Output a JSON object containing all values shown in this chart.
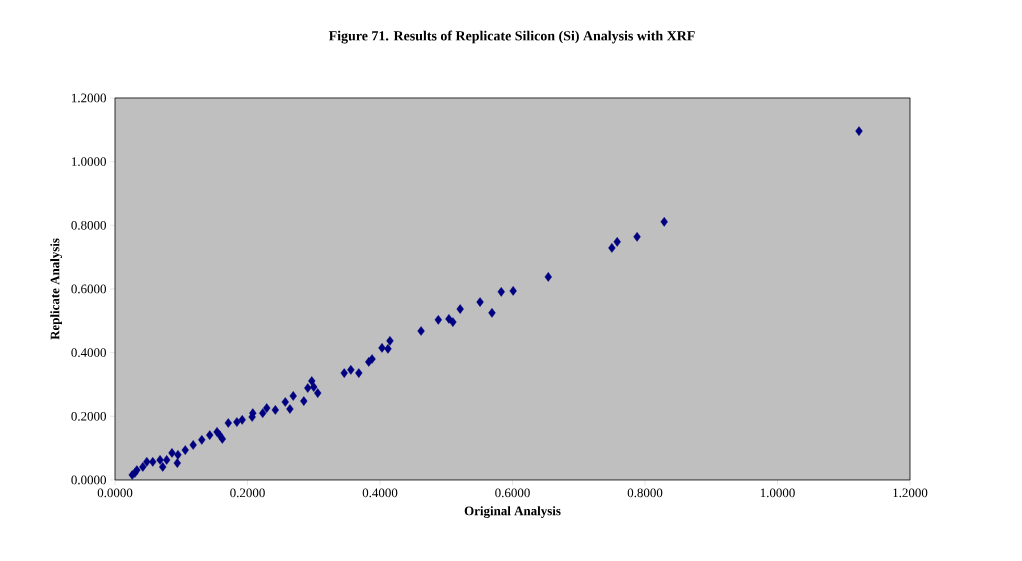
{
  "chart_data": {
    "type": "scatter",
    "title": "Figure 71.  Results of Replicate Silicon (Si) Analysis with XRF",
    "xlabel": "Original Analysis",
    "ylabel": "Replicate Analysis",
    "xlim": [
      0,
      1.2
    ],
    "ylim": [
      0,
      1.2
    ],
    "xticks": [
      {
        "value": 0,
        "label": "0.0000"
      },
      {
        "value": 0.2,
        "label": "0.2000"
      },
      {
        "value": 0.4,
        "label": "0.4000"
      },
      {
        "value": 0.6,
        "label": "0.6000"
      },
      {
        "value": 0.8,
        "label": "0.8000"
      },
      {
        "value": 1.0,
        "label": "1.0000"
      },
      {
        "value": 1.2,
        "label": "1.2000"
      }
    ],
    "yticks": [
      {
        "value": 0,
        "label": "0.0000"
      },
      {
        "value": 0.2,
        "label": "0.2000"
      },
      {
        "value": 0.4,
        "label": "0.4000"
      },
      {
        "value": 0.6,
        "label": "0.6000"
      },
      {
        "value": 0.8,
        "label": "0.8000"
      },
      {
        "value": 1.0,
        "label": "1.0000"
      },
      {
        "value": 1.2,
        "label": "1.2000"
      }
    ],
    "marker": "diamond",
    "grid": false,
    "series": [
      {
        "color": "#000080",
        "x": [
          1.123,
          0.829,
          0.788,
          0.758,
          0.75,
          0.654,
          0.601,
          0.583,
          0.569,
          0.551,
          0.521,
          0.51,
          0.504,
          0.488,
          0.462,
          0.415,
          0.412,
          0.403,
          0.388,
          0.383,
          0.368,
          0.356,
          0.346,
          0.297,
          0.306,
          0.3,
          0.285,
          0.291,
          0.269,
          0.257,
          0.264,
          0.242,
          0.229,
          0.223,
          0.208,
          0.207,
          0.192,
          0.184,
          0.171,
          0.162,
          0.158,
          0.154,
          0.143,
          0.131,
          0.118,
          0.106,
          0.094,
          0.095,
          0.086,
          0.078,
          0.072,
          0.068,
          0.057,
          0.048,
          0.042,
          0.033,
          0.026,
          0.03
        ],
        "values": [
          1.096,
          0.811,
          0.764,
          0.748,
          0.729,
          0.638,
          0.594,
          0.591,
          0.525,
          0.559,
          0.537,
          0.496,
          0.506,
          0.503,
          0.468,
          0.437,
          0.412,
          0.415,
          0.38,
          0.371,
          0.336,
          0.346,
          0.336,
          0.311,
          0.273,
          0.292,
          0.248,
          0.289,
          0.264,
          0.245,
          0.223,
          0.22,
          0.226,
          0.21,
          0.21,
          0.198,
          0.189,
          0.182,
          0.179,
          0.129,
          0.141,
          0.151,
          0.141,
          0.126,
          0.11,
          0.094,
          0.053,
          0.079,
          0.085,
          0.063,
          0.041,
          0.063,
          0.057,
          0.057,
          0.041,
          0.031,
          0.016,
          0.022
        ]
      }
    ]
  }
}
